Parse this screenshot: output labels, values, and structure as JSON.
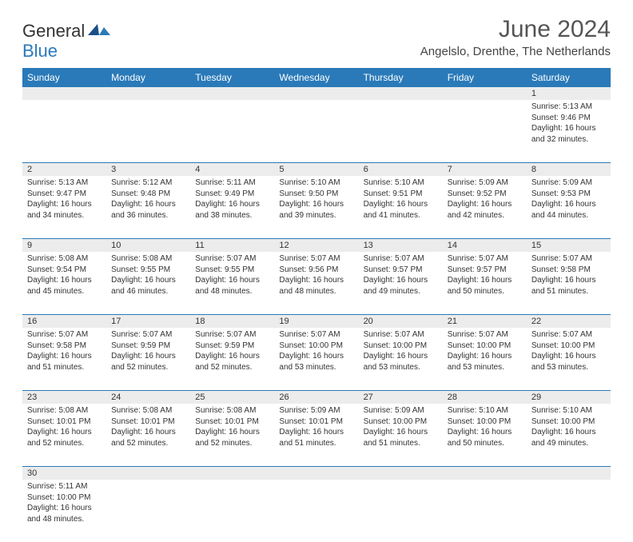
{
  "logo": {
    "text1": "General",
    "text2": "Blue"
  },
  "title": "June 2024",
  "location": "Angelslo, Drenthe, The Netherlands",
  "colors": {
    "header_bg": "#2a7ab9",
    "header_text": "#ffffff",
    "daynum_bg": "#ececec",
    "border": "#2a7ab9",
    "text": "#333333"
  },
  "weekdays": [
    "Sunday",
    "Monday",
    "Tuesday",
    "Wednesday",
    "Thursday",
    "Friday",
    "Saturday"
  ],
  "weeks": [
    {
      "nums": [
        "",
        "",
        "",
        "",
        "",
        "",
        "1"
      ],
      "cells": [
        "",
        "",
        "",
        "",
        "",
        "",
        "Sunrise: 5:13 AM\nSunset: 9:46 PM\nDaylight: 16 hours and 32 minutes."
      ]
    },
    {
      "nums": [
        "2",
        "3",
        "4",
        "5",
        "6",
        "7",
        "8"
      ],
      "cells": [
        "Sunrise: 5:13 AM\nSunset: 9:47 PM\nDaylight: 16 hours and 34 minutes.",
        "Sunrise: 5:12 AM\nSunset: 9:48 PM\nDaylight: 16 hours and 36 minutes.",
        "Sunrise: 5:11 AM\nSunset: 9:49 PM\nDaylight: 16 hours and 38 minutes.",
        "Sunrise: 5:10 AM\nSunset: 9:50 PM\nDaylight: 16 hours and 39 minutes.",
        "Sunrise: 5:10 AM\nSunset: 9:51 PM\nDaylight: 16 hours and 41 minutes.",
        "Sunrise: 5:09 AM\nSunset: 9:52 PM\nDaylight: 16 hours and 42 minutes.",
        "Sunrise: 5:09 AM\nSunset: 9:53 PM\nDaylight: 16 hours and 44 minutes."
      ]
    },
    {
      "nums": [
        "9",
        "10",
        "11",
        "12",
        "13",
        "14",
        "15"
      ],
      "cells": [
        "Sunrise: 5:08 AM\nSunset: 9:54 PM\nDaylight: 16 hours and 45 minutes.",
        "Sunrise: 5:08 AM\nSunset: 9:55 PM\nDaylight: 16 hours and 46 minutes.",
        "Sunrise: 5:07 AM\nSunset: 9:55 PM\nDaylight: 16 hours and 48 minutes.",
        "Sunrise: 5:07 AM\nSunset: 9:56 PM\nDaylight: 16 hours and 48 minutes.",
        "Sunrise: 5:07 AM\nSunset: 9:57 PM\nDaylight: 16 hours and 49 minutes.",
        "Sunrise: 5:07 AM\nSunset: 9:57 PM\nDaylight: 16 hours and 50 minutes.",
        "Sunrise: 5:07 AM\nSunset: 9:58 PM\nDaylight: 16 hours and 51 minutes."
      ]
    },
    {
      "nums": [
        "16",
        "17",
        "18",
        "19",
        "20",
        "21",
        "22"
      ],
      "cells": [
        "Sunrise: 5:07 AM\nSunset: 9:58 PM\nDaylight: 16 hours and 51 minutes.",
        "Sunrise: 5:07 AM\nSunset: 9:59 PM\nDaylight: 16 hours and 52 minutes.",
        "Sunrise: 5:07 AM\nSunset: 9:59 PM\nDaylight: 16 hours and 52 minutes.",
        "Sunrise: 5:07 AM\nSunset: 10:00 PM\nDaylight: 16 hours and 53 minutes.",
        "Sunrise: 5:07 AM\nSunset: 10:00 PM\nDaylight: 16 hours and 53 minutes.",
        "Sunrise: 5:07 AM\nSunset: 10:00 PM\nDaylight: 16 hours and 53 minutes.",
        "Sunrise: 5:07 AM\nSunset: 10:00 PM\nDaylight: 16 hours and 53 minutes."
      ]
    },
    {
      "nums": [
        "23",
        "24",
        "25",
        "26",
        "27",
        "28",
        "29"
      ],
      "cells": [
        "Sunrise: 5:08 AM\nSunset: 10:01 PM\nDaylight: 16 hours and 52 minutes.",
        "Sunrise: 5:08 AM\nSunset: 10:01 PM\nDaylight: 16 hours and 52 minutes.",
        "Sunrise: 5:08 AM\nSunset: 10:01 PM\nDaylight: 16 hours and 52 minutes.",
        "Sunrise: 5:09 AM\nSunset: 10:01 PM\nDaylight: 16 hours and 51 minutes.",
        "Sunrise: 5:09 AM\nSunset: 10:00 PM\nDaylight: 16 hours and 51 minutes.",
        "Sunrise: 5:10 AM\nSunset: 10:00 PM\nDaylight: 16 hours and 50 minutes.",
        "Sunrise: 5:10 AM\nSunset: 10:00 PM\nDaylight: 16 hours and 49 minutes."
      ]
    },
    {
      "nums": [
        "30",
        "",
        "",
        "",
        "",
        "",
        ""
      ],
      "cells": [
        "Sunrise: 5:11 AM\nSunset: 10:00 PM\nDaylight: 16 hours and 48 minutes.",
        "",
        "",
        "",
        "",
        "",
        ""
      ]
    }
  ]
}
